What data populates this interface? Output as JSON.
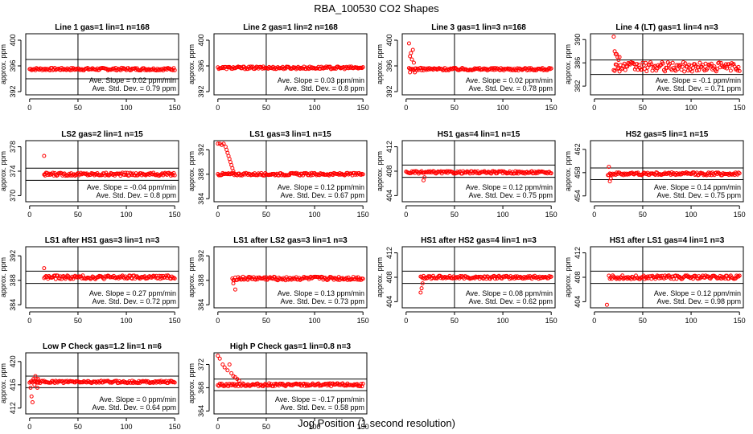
{
  "title": "RBA_100530  CO2 Shapes",
  "xlabel": "Jog Position (1 second resolution)",
  "colors": {
    "marker": "#ff0000",
    "axis": "#000000"
  },
  "chart_data": [
    {
      "type": "scatter",
      "title": "Line 1 gas=1 lin=1 n=168",
      "ylabel": "approx. ppm",
      "ylim": [
        391.5,
        401
      ],
      "yticks": [
        "392",
        "396",
        "400"
      ],
      "ytick_values": [
        392,
        396,
        400
      ],
      "xlim": [
        -4,
        154
      ],
      "xticks": [
        "0",
        "50",
        "100",
        "150"
      ],
      "xtick_values": [
        0,
        50,
        100,
        150
      ],
      "vline": 50,
      "hlines": [
        397,
        394
      ],
      "center": 395.5,
      "noise": 0.2,
      "annotations": [
        "Ave. Slope =  0.02  ppm/min",
        "Ave. Std. Dev. =  0.79  ppm"
      ],
      "start": 0,
      "grid": false
    },
    {
      "type": "scatter",
      "title": "Line 2 gas=1 lin=2 n=168",
      "ylabel": "approx. ppm",
      "ylim": [
        391.5,
        401
      ],
      "yticks": [
        "392",
        "396",
        "400"
      ],
      "ytick_values": [
        392,
        396,
        400
      ],
      "xlim": [
        -4,
        154
      ],
      "xticks": [
        "0",
        "50",
        "100",
        "150"
      ],
      "xtick_values": [
        0,
        50,
        100,
        150
      ],
      "vline": 50,
      "hlines": [],
      "center": 395.7,
      "noise": 0.2,
      "annotations": [
        "Ave. Slope =  0.03  ppm/min",
        "Ave. Std. Dev. =  0.8  ppm"
      ],
      "start": 0,
      "grid": false
    },
    {
      "type": "scatter",
      "title": "Line 3 gas=1 lin=3 n=168",
      "ylabel": "approx. ppm",
      "ylim": [
        391.5,
        401
      ],
      "yticks": [
        "392",
        "396",
        "400"
      ],
      "ytick_values": [
        392,
        396,
        400
      ],
      "xlim": [
        -4,
        154
      ],
      "xticks": [
        "0",
        "50",
        "100",
        "150"
      ],
      "xtick_values": [
        0,
        50,
        100,
        150
      ],
      "vline": 50,
      "hlines": [],
      "center": 395.5,
      "noise": 0.2,
      "annotations": [
        "Ave. Slope =  0.02  ppm/min",
        "Ave. Std. Dev. =  0.78  ppm"
      ],
      "start": 3,
      "spike": [
        [
          3,
          399.5
        ],
        [
          4,
          397.5
        ],
        [
          5,
          398
        ],
        [
          6,
          397
        ],
        [
          7,
          398.5
        ],
        [
          8,
          396.5
        ],
        [
          9,
          395
        ],
        [
          4,
          395
        ]
      ],
      "grid": false
    },
    {
      "type": "scatter",
      "title": "Line 4 (LT) gas=1 lin=4 n=3",
      "ylabel": "approx. ppm",
      "ylim": [
        380.5,
        391
      ],
      "yticks": [
        "382",
        "386",
        "390"
      ],
      "ytick_values": [
        382,
        386,
        390
      ],
      "xlim": [
        -4,
        154
      ],
      "xticks": [
        "0",
        "50",
        "100",
        "150"
      ],
      "xtick_values": [
        0,
        50,
        100,
        150
      ],
      "vline": 50,
      "hlines": [
        386.5,
        384
      ],
      "center": 385.3,
      "noise": 0.8,
      "annotations": [
        "Ave. Slope =  -0.1  ppm/min",
        "Ave. Std. Dev. =  0.71  ppm"
      ],
      "start": 20,
      "spike": [
        [
          20,
          390.5
        ],
        [
          21,
          388
        ],
        [
          22,
          387.5
        ],
        [
          23,
          387.5
        ],
        [
          24,
          387
        ],
        [
          25,
          386.5
        ],
        [
          26,
          387
        ]
      ],
      "grid": false
    },
    {
      "type": "scatter",
      "title": "LS2 gas=2 lin=1 n=15",
      "ylabel": "approx. ppm",
      "ylim": [
        369,
        379
      ],
      "yticks": [
        "370",
        "374",
        "378"
      ],
      "ytick_values": [
        370,
        374,
        378
      ],
      "xlim": [
        -4,
        154
      ],
      "xticks": [
        "0",
        "50",
        "100",
        "150"
      ],
      "xtick_values": [
        0,
        50,
        100,
        150
      ],
      "vline": 50,
      "hlines": [
        374.5,
        372.5
      ],
      "center": 373.5,
      "noise": 0.25,
      "annotations": [
        "Ave. Slope =  -0.04  ppm/min",
        "Ave. Std. Dev. =  0.8  ppm"
      ],
      "start": 15,
      "spike": [
        [
          15,
          376.5
        ],
        [
          16,
          373.3
        ]
      ],
      "grid": false
    },
    {
      "type": "scatter",
      "title": "LS1 gas=3 lin=1 n=15",
      "ylabel": "approx. ppm",
      "ylim": [
        383.5,
        393.5
      ],
      "yticks": [
        "384",
        "388",
        "392"
      ],
      "ytick_values": [
        384,
        388,
        392
      ],
      "xlim": [
        -4,
        154
      ],
      "xticks": [
        "0",
        "50",
        "100",
        "150"
      ],
      "xtick_values": [
        0,
        50,
        100,
        150
      ],
      "vline": 50,
      "hlines": [],
      "center": 388,
      "noise": 0.2,
      "annotations": [
        "Ave. Slope =  0.12  ppm/min",
        "Ave. Std. Dev. =  0.67  ppm"
      ],
      "start": 0,
      "spike": [
        [
          0,
          393
        ],
        [
          2,
          393
        ],
        [
          4,
          392.8
        ],
        [
          6,
          393
        ],
        [
          8,
          392.5
        ],
        [
          9,
          392
        ],
        [
          10,
          391.5
        ],
        [
          11,
          391
        ],
        [
          12,
          390.5
        ],
        [
          13,
          390
        ],
        [
          14,
          389.5
        ],
        [
          15,
          389
        ],
        [
          16,
          388.5
        ]
      ],
      "grid": false
    },
    {
      "type": "scatter",
      "title": "HS1 gas=4 lin=1 n=15",
      "ylabel": "approx. ppm",
      "ylim": [
        403,
        413
      ],
      "yticks": [
        "404",
        "408",
        "412"
      ],
      "ytick_values": [
        404,
        408,
        412
      ],
      "xlim": [
        -4,
        154
      ],
      "xticks": [
        "0",
        "50",
        "100",
        "150"
      ],
      "xtick_values": [
        0,
        50,
        100,
        150
      ],
      "vline": 50,
      "hlines": [
        409,
        407
      ],
      "center": 407.8,
      "noise": 0.2,
      "annotations": [
        "Ave. Slope =  0.12  ppm/min",
        "Ave. Std. Dev. =  0.75  ppm"
      ],
      "start": 0,
      "spike": [
        [
          18,
          406.5
        ],
        [
          19,
          407
        ]
      ],
      "grid": false
    },
    {
      "type": "scatter",
      "title": "HS2 gas=5 lin=1 n=15",
      "ylabel": "approx. ppm",
      "ylim": [
        453,
        463.5
      ],
      "yticks": [
        "454",
        "458",
        "462"
      ],
      "ytick_values": [
        454,
        458,
        462
      ],
      "xlim": [
        -4,
        154
      ],
      "xticks": [
        "0",
        "50",
        "100",
        "150"
      ],
      "xtick_values": [
        0,
        50,
        100,
        150
      ],
      "vline": 50,
      "hlines": [
        458.8,
        456.8
      ],
      "center": 457.8,
      "noise": 0.25,
      "annotations": [
        "Ave. Slope =  0.14  ppm/min",
        "Ave. Std. Dev. =  0.75  ppm"
      ],
      "start": 14,
      "spike": [
        [
          15,
          459
        ],
        [
          16,
          456.5
        ],
        [
          17,
          457
        ]
      ],
      "grid": false
    },
    {
      "type": "scatter",
      "title": "LS1 after HS1 gas=3 lin=1 n=3",
      "ylabel": "approx. ppm",
      "ylim": [
        383.5,
        393.5
      ],
      "yticks": [
        "384",
        "388",
        "392"
      ],
      "ytick_values": [
        384,
        388,
        392
      ],
      "xlim": [
        -4,
        154
      ],
      "xticks": [
        "0",
        "50",
        "100",
        "150"
      ],
      "xtick_values": [
        0,
        50,
        100,
        150
      ],
      "vline": 50,
      "hlines": [
        389.5,
        387.5
      ],
      "center": 388.5,
      "noise": 0.3,
      "annotations": [
        "Ave. Slope =  0.27  ppm/min",
        "Ave. Std. Dev. =  0.72  ppm"
      ],
      "start": 15,
      "spike": [
        [
          15,
          390
        ]
      ],
      "grid": false
    },
    {
      "type": "scatter",
      "title": "LS1 after LS2 gas=3 lin=1 n=3",
      "ylabel": "approx. ppm",
      "ylim": [
        383.5,
        393.5
      ],
      "yticks": [
        "384",
        "388",
        "392"
      ],
      "ytick_values": [
        384,
        388,
        392
      ],
      "xlim": [
        -4,
        154
      ],
      "xticks": [
        "0",
        "50",
        "100",
        "150"
      ],
      "xtick_values": [
        0,
        50,
        100,
        150
      ],
      "vline": 50,
      "hlines": [],
      "center": 388.3,
      "noise": 0.3,
      "annotations": [
        "Ave. Slope =  0.13  ppm/min",
        "Ave. Std. Dev. =  0.73  ppm"
      ],
      "start": 15,
      "spike": [
        [
          16,
          387.5
        ],
        [
          18,
          386.5
        ]
      ],
      "grid": false
    },
    {
      "type": "scatter",
      "title": "HS1 after HS2 gas=4 lin=1 n=3",
      "ylabel": "approx. ppm",
      "ylim": [
        403,
        413
      ],
      "yticks": [
        "404",
        "408",
        "412"
      ],
      "ytick_values": [
        404,
        408,
        412
      ],
      "xlim": [
        -4,
        154
      ],
      "xticks": [
        "0",
        "50",
        "100",
        "150"
      ],
      "xtick_values": [
        0,
        50,
        100,
        150
      ],
      "vline": 50,
      "hlines": [
        409,
        407
      ],
      "center": 408,
      "noise": 0.25,
      "annotations": [
        "Ave. Slope =  0.08  ppm/min",
        "Ave. Std. Dev. =  0.62  ppm"
      ],
      "start": 15,
      "spike": [
        [
          15,
          405.5
        ],
        [
          16,
          406.2
        ],
        [
          17,
          407
        ]
      ],
      "grid": false
    },
    {
      "type": "scatter",
      "title": "HS1 after LS1 gas=4 lin=1 n=3",
      "ylabel": "approx. ppm",
      "ylim": [
        403,
        413
      ],
      "yticks": [
        "404",
        "408",
        "412"
      ],
      "ytick_values": [
        404,
        408,
        412
      ],
      "xlim": [
        -4,
        154
      ],
      "xticks": [
        "0",
        "50",
        "100",
        "150"
      ],
      "xtick_values": [
        0,
        50,
        100,
        150
      ],
      "vline": 50,
      "hlines": [
        409,
        407
      ],
      "center": 408,
      "noise": 0.3,
      "annotations": [
        "Ave. Slope =  0.12  ppm/min",
        "Ave. Std. Dev. =  0.98  ppm"
      ],
      "start": 15,
      "spike": [
        [
          13,
          403.5
        ]
      ],
      "grid": false
    },
    {
      "type": "scatter",
      "title": "Low P Check gas=1.2 lin=1 n=6",
      "ylabel": "approx. ppm",
      "ylim": [
        411,
        421.5
      ],
      "yticks": [
        "412",
        "416",
        "420"
      ],
      "ytick_values": [
        412,
        416,
        420
      ],
      "xlim": [
        -4,
        154
      ],
      "xticks": [
        "0",
        "50",
        "100",
        "150"
      ],
      "xtick_values": [
        0,
        50,
        100,
        150
      ],
      "vline": 50,
      "hlines": [
        417.5,
        415.5
      ],
      "center": 416.5,
      "noise": 0.2,
      "annotations": [
        "Ave. Slope =  0  ppm/min",
        "Ave. Std. Dev. =  0.64  ppm"
      ],
      "start": 0,
      "spike": [
        [
          1,
          415.5
        ],
        [
          2,
          414
        ],
        [
          3,
          413
        ],
        [
          4,
          417
        ],
        [
          5,
          416
        ],
        [
          6,
          417.5
        ],
        [
          7,
          417
        ],
        [
          8,
          415.5
        ],
        [
          9,
          417
        ]
      ],
      "grid": false
    },
    {
      "type": "scatter",
      "title": "High P Check gas=1 lin=0.8 n=3",
      "ylabel": "approx. ppm",
      "ylim": [
        363.5,
        374
      ],
      "yticks": [
        "364",
        "368",
        "372"
      ],
      "ytick_values": [
        364,
        368,
        372
      ],
      "xlim": [
        -4,
        154
      ],
      "xticks": [
        "0",
        "50",
        "100",
        "150"
      ],
      "xtick_values": [
        0,
        50,
        100,
        150
      ],
      "vline": 50,
      "hlines": [
        369.5,
        367.5
      ],
      "center": 368.5,
      "noise": 0.25,
      "annotations": [
        "Ave. Slope =  -0.17  ppm/min",
        "Ave. Std. Dev. =  0.58  ppm"
      ],
      "start": 0,
      "spike": [
        [
          0,
          373.5
        ],
        [
          2,
          373
        ],
        [
          5,
          372
        ],
        [
          7,
          371.5
        ],
        [
          10,
          371
        ],
        [
          12,
          372
        ],
        [
          14,
          370.5
        ],
        [
          16,
          370
        ],
        [
          18,
          369.8
        ],
        [
          20,
          369.5
        ],
        [
          22,
          369.2
        ]
      ],
      "grid": false
    }
  ]
}
